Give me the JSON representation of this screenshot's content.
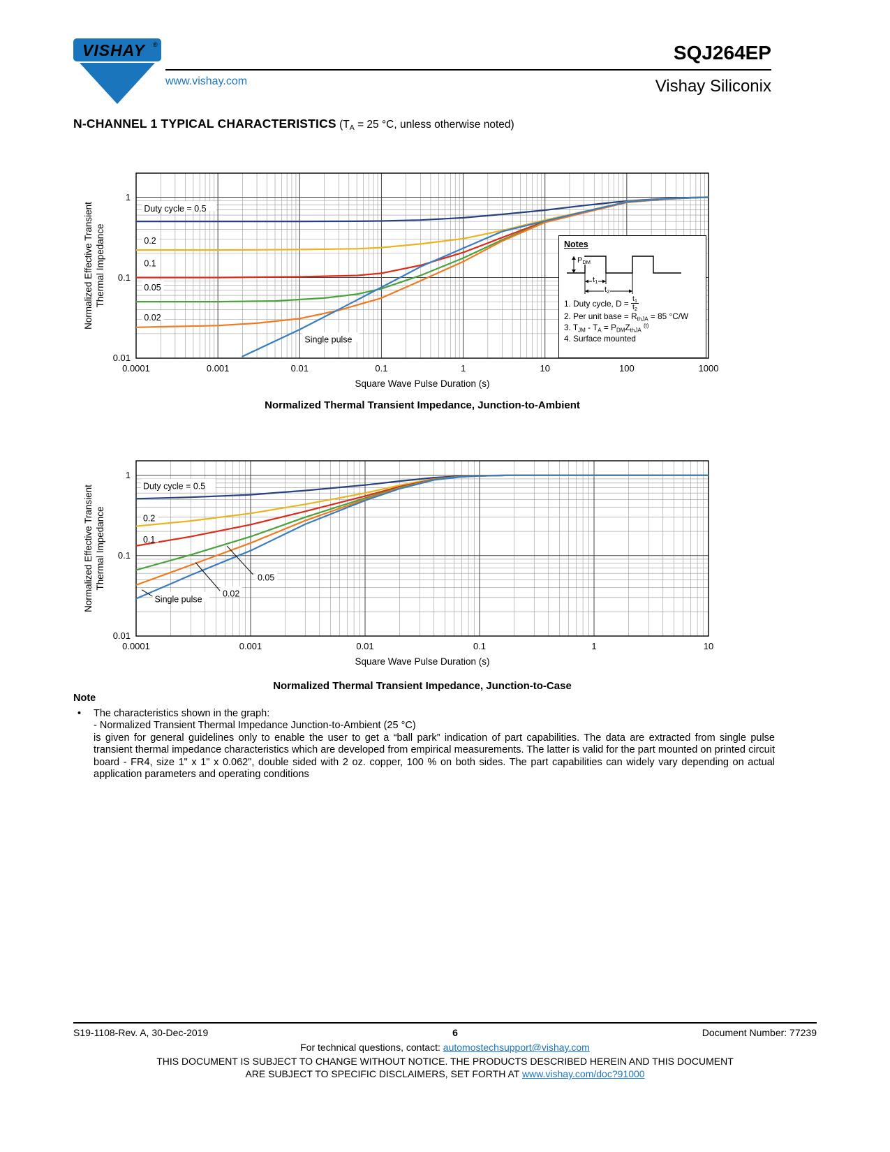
{
  "header": {
    "logo_text": "VISHAY",
    "logo_reg": "®",
    "website": "www.vishay.com",
    "part_number": "SQJ264EP",
    "division": "Vishay Siliconix"
  },
  "section": {
    "title_bold": "N-CHANNEL 1 TYPICAL CHARACTERISTICS",
    "title_rest": " (T_{A} = 25 °C, unless otherwise noted)"
  },
  "chart_data": [
    {
      "type": "line",
      "title": "Normalized Thermal Transient Impedance, Junction-to-Ambient",
      "xlabel": "Square Wave Pulse Duration (s)",
      "ylabel_line1": "Normalized Effective Transient",
      "ylabel_line2": "Thermal Impedance",
      "xlog_min": -4,
      "xlog_max": 3,
      "ylog_min": -2,
      "ylog_top": 0.3,
      "xticks": [
        "0.0001",
        "0.001",
        "0.01",
        "0.1",
        "1",
        "10",
        "100",
        "1000"
      ],
      "yticks": [
        "0.01",
        "0.1",
        "1"
      ],
      "series": [
        {
          "name": "Duty cycle = 0.5",
          "color": "#26427e",
          "points": [
            [
              0.0001,
              0.5
            ],
            [
              0.001,
              0.5
            ],
            [
              0.01,
              0.5
            ],
            [
              0.05,
              0.502
            ],
            [
              0.1,
              0.506
            ],
            [
              0.3,
              0.52
            ],
            [
              1,
              0.555
            ],
            [
              3,
              0.612
            ],
            [
              10,
              0.69
            ],
            [
              30,
              0.79
            ],
            [
              100,
              0.9
            ],
            [
              300,
              0.965
            ],
            [
              600,
              0.99
            ],
            [
              1000,
              1.0
            ]
          ]
        },
        {
          "name": "0.2",
          "color": "#e9b51f",
          "points": [
            [
              0.0001,
              0.22
            ],
            [
              0.001,
              0.22
            ],
            [
              0.01,
              0.223
            ],
            [
              0.05,
              0.228
            ],
            [
              0.1,
              0.236
            ],
            [
              0.3,
              0.262
            ],
            [
              1,
              0.305
            ],
            [
              3,
              0.385
            ],
            [
              10,
              0.52
            ],
            [
              30,
              0.665
            ],
            [
              100,
              0.88
            ],
            [
              300,
              0.958
            ],
            [
              600,
              0.985
            ],
            [
              1000,
              1.0
            ]
          ]
        },
        {
          "name": "0.1",
          "color": "#dd2b1a",
          "points": [
            [
              0.0001,
              0.1
            ],
            [
              0.001,
              0.1
            ],
            [
              0.01,
              0.102
            ],
            [
              0.05,
              0.106
            ],
            [
              0.1,
              0.113
            ],
            [
              0.3,
              0.142
            ],
            [
              1,
              0.205
            ],
            [
              3,
              0.315
            ],
            [
              10,
              0.5
            ],
            [
              30,
              0.65
            ],
            [
              100,
              0.87
            ],
            [
              300,
              0.952
            ],
            [
              600,
              0.982
            ],
            [
              1000,
              1.0
            ]
          ]
        },
        {
          "name": "0.05",
          "color": "#4aa23c",
          "points": [
            [
              0.0001,
              0.05
            ],
            [
              0.001,
              0.05
            ],
            [
              0.005,
              0.051
            ],
            [
              0.02,
              0.0555
            ],
            [
              0.05,
              0.062
            ],
            [
              0.1,
              0.0725
            ],
            [
              0.3,
              0.106
            ],
            [
              1,
              0.175
            ],
            [
              3,
              0.295
            ],
            [
              10,
              0.49
            ],
            [
              30,
              0.645
            ],
            [
              100,
              0.865
            ],
            [
              300,
              0.95
            ],
            [
              600,
              0.982
            ],
            [
              1000,
              1.0
            ]
          ]
        },
        {
          "name": "0.02",
          "color": "#ef7a1f",
          "points": [
            [
              0.0001,
              0.024
            ],
            [
              0.001,
              0.0252
            ],
            [
              0.003,
              0.027
            ],
            [
              0.01,
              0.0308
            ],
            [
              0.03,
              0.039
            ],
            [
              0.1,
              0.0555
            ],
            [
              0.3,
              0.091
            ],
            [
              1,
              0.158
            ],
            [
              3,
              0.285
            ],
            [
              10,
              0.485
            ],
            [
              30,
              0.64
            ],
            [
              100,
              0.862
            ],
            [
              300,
              0.949
            ],
            [
              600,
              0.981
            ],
            [
              1000,
              1.0
            ]
          ]
        },
        {
          "name": "Single pulse",
          "color": "#377dc0",
          "points": [
            [
              0.002,
              0.0104
            ],
            [
              0.004,
              0.0145
            ],
            [
              0.01,
              0.0225
            ],
            [
              0.03,
              0.04
            ],
            [
              0.1,
              0.0755
            ],
            [
              0.3,
              0.136
            ],
            [
              1,
              0.232
            ],
            [
              3,
              0.375
            ],
            [
              10,
              0.505
            ],
            [
              30,
              0.66
            ],
            [
              100,
              0.872
            ],
            [
              300,
              0.958
            ],
            [
              600,
              0.985
            ],
            [
              1000,
              1.0
            ]
          ]
        }
      ],
      "annotations": [
        {
          "text": "Duty cycle = 0.5",
          "x": 0.000125,
          "y": 0.72
        },
        {
          "text": "0.2",
          "x": 0.000125,
          "y": 0.285
        },
        {
          "text": "0.1",
          "x": 0.000125,
          "y": 0.149
        },
        {
          "text": "0.05",
          "x": 0.000125,
          "y": 0.0745
        },
        {
          "text": "0.02",
          "x": 0.000125,
          "y": 0.0315
        },
        {
          "text": "Single pulse",
          "x": 0.0115,
          "y": 0.0168
        }
      ],
      "leaders": []
    },
    {
      "type": "line",
      "title": "Normalized Thermal Transient Impedance, Junction-to-Case",
      "xlabel": "Square Wave Pulse Duration (s)",
      "ylabel_line1": "Normalized Effective Transient",
      "ylabel_line2": "Thermal Impedance",
      "xlog_min": -4,
      "xlog_max": 1,
      "ylog_min": -2,
      "ylog_top": 0.18,
      "xticks": [
        "0.0001",
        "0.001",
        "0.01",
        "0.1",
        "1",
        "10"
      ],
      "yticks": [
        "0.01",
        "0.1",
        "1"
      ],
      "series": [
        {
          "name": "Duty cycle = 0.5",
          "color": "#26427e",
          "points": [
            [
              0.0001,
              0.51
            ],
            [
              0.0003,
              0.532
            ],
            [
              0.001,
              0.572
            ],
            [
              0.003,
              0.645
            ],
            [
              0.01,
              0.755
            ],
            [
              0.02,
              0.845
            ],
            [
              0.04,
              0.935
            ],
            [
              0.07,
              0.975
            ],
            [
              0.1,
              0.99
            ],
            [
              0.2,
              1.0
            ],
            [
              1,
              1.0
            ],
            [
              10,
              1.0
            ]
          ]
        },
        {
          "name": "0.2",
          "color": "#e9b51f",
          "points": [
            [
              0.0001,
              0.232
            ],
            [
              0.0003,
              0.27
            ],
            [
              0.001,
              0.335
            ],
            [
              0.003,
              0.435
            ],
            [
              0.01,
              0.6
            ],
            [
              0.02,
              0.75
            ],
            [
              0.04,
              0.9
            ],
            [
              0.07,
              0.965
            ],
            [
              0.1,
              0.985
            ],
            [
              0.2,
              1.0
            ],
            [
              1,
              1.0
            ],
            [
              10,
              1.0
            ]
          ]
        },
        {
          "name": "0.1",
          "color": "#dd2b1a",
          "points": [
            [
              0.0001,
              0.132
            ],
            [
              0.0003,
              0.172
            ],
            [
              0.001,
              0.243
            ],
            [
              0.003,
              0.355
            ],
            [
              0.01,
              0.55
            ],
            [
              0.02,
              0.72
            ],
            [
              0.04,
              0.89
            ],
            [
              0.07,
              0.962
            ],
            [
              0.1,
              0.983
            ],
            [
              0.2,
              1.0
            ],
            [
              1,
              1.0
            ],
            [
              10,
              1.0
            ]
          ]
        },
        {
          "name": "0.05",
          "color": "#4aa23c",
          "points": [
            [
              0.0001,
              0.066
            ],
            [
              0.0003,
              0.102
            ],
            [
              0.001,
              0.172
            ],
            [
              0.003,
              0.3
            ],
            [
              0.01,
              0.52
            ],
            [
              0.02,
              0.7
            ],
            [
              0.04,
              0.885
            ],
            [
              0.07,
              0.96
            ],
            [
              0.1,
              0.982
            ],
            [
              0.2,
              1.0
            ],
            [
              1,
              1.0
            ],
            [
              10,
              1.0
            ]
          ]
        },
        {
          "name": "0.02",
          "color": "#ef7a1f",
          "points": [
            [
              0.0001,
              0.043
            ],
            [
              0.0003,
              0.076
            ],
            [
              0.001,
              0.143
            ],
            [
              0.003,
              0.272
            ],
            [
              0.01,
              0.5
            ],
            [
              0.02,
              0.69
            ],
            [
              0.04,
              0.88
            ],
            [
              0.07,
              0.958
            ],
            [
              0.1,
              0.981
            ],
            [
              0.2,
              1.0
            ],
            [
              1,
              1.0
            ],
            [
              10,
              1.0
            ]
          ]
        },
        {
          "name": "Single pulse",
          "color": "#377dc0",
          "points": [
            [
              0.0001,
              0.029
            ],
            [
              0.0003,
              0.057
            ],
            [
              0.001,
              0.115
            ],
            [
              0.003,
              0.245
            ],
            [
              0.01,
              0.485
            ],
            [
              0.02,
              0.68
            ],
            [
              0.04,
              0.875
            ],
            [
              0.07,
              0.956
            ],
            [
              0.1,
              0.98
            ],
            [
              0.2,
              1.0
            ],
            [
              1,
              1.0
            ],
            [
              10,
              1.0
            ]
          ]
        }
      ],
      "annotations": [
        {
          "text": "Duty cycle = 0.5",
          "x": 0.000115,
          "y": 0.73
        },
        {
          "text": "0.2",
          "x": 0.000115,
          "y": 0.29
        },
        {
          "text": "0.1",
          "x": 0.000115,
          "y": 0.157
        },
        {
          "text": "0.05",
          "x": 0.00115,
          "y": 0.053
        },
        {
          "text": "0.02",
          "x": 0.00057,
          "y": 0.0335
        },
        {
          "text": "Single pulse",
          "x": 0.000145,
          "y": 0.0285
        }
      ],
      "leaders": [
        [
          0.00105,
          0.058,
          0.00062,
          0.132
        ],
        [
          0.00054,
          0.0365,
          0.00033,
          0.082
        ],
        [
          0.000142,
          0.0305,
          0.000112,
          0.0375
        ]
      ]
    }
  ],
  "notes_box": {
    "title": "Notes",
    "waveform_labels": {
      "pdm": "P_{DM}",
      "t1": "t_{1}",
      "t2": "t_{2}"
    },
    "line1_prefix": "1. Duty cycle, D = ",
    "frac_num": "t_{1}",
    "frac_den": "t_{2}",
    "line2": "2. Per unit base = R_{thJA} = 85 °C/W",
    "line3": "3. T_{JM} - T_{A} = P_{DM}Z_{thJA} ^{(t)}",
    "line4": "4. Surface mounted"
  },
  "note_section": {
    "heading": "Note",
    "bullet": "•",
    "lines": [
      "The characteristics shown in the graph:",
      "- Normalized Transient Thermal Impedance Junction-to-Ambient (25 °C)"
    ],
    "paragraph": "is given for general guidelines only to enable the user to get a “ball park” indication of part capabilities. The data are extracted from single pulse transient thermal impedance characteristics which are developed from empirical measurements. The latter is valid for the part mounted on printed circuit board - FR4, size 1\" x 1\" x 0.062\", double sided with 2 oz. copper, 100 % on both sides. The part capabilities can widely vary depending on actual application parameters and operating conditions"
  },
  "footer": {
    "revision": "S19-1108-Rev. A, 30-Dec-2019",
    "page_number": "6",
    "document_number": "Document Number: 77239",
    "contact_prefix": "For technical questions, contact: ",
    "contact_email": "automostechsupport@vishay.com",
    "disclaimer_line1": "THIS DOCUMENT IS SUBJECT TO CHANGE WITHOUT NOTICE. THE PRODUCTS DESCRIBED HEREIN AND THIS DOCUMENT",
    "disclaimer_line2_prefix": "ARE SUBJECT TO SPECIFIC DISCLAIMERS, SET FORTH AT ",
    "disclaimer_link": "www.vishay.com/doc?91000"
  }
}
